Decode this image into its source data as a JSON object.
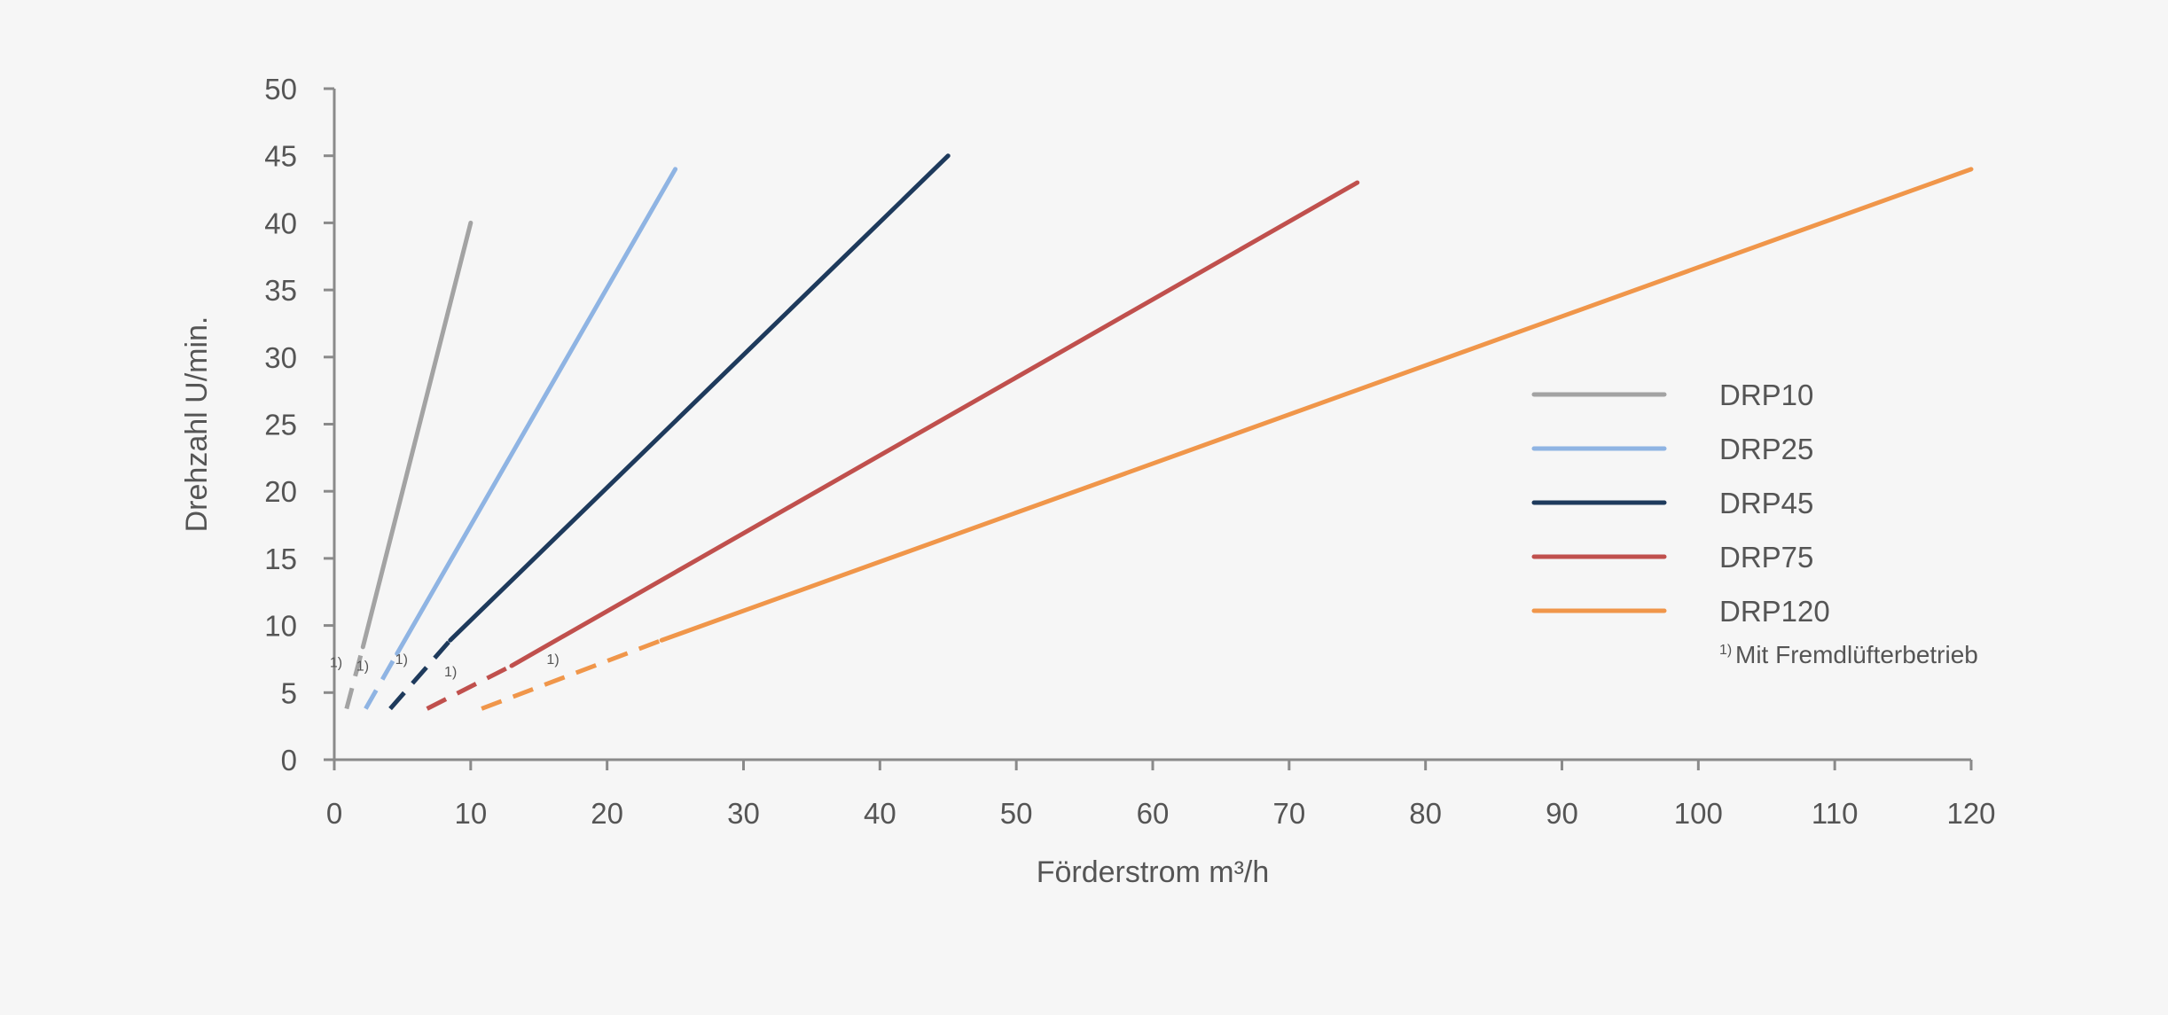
{
  "chart_data": {
    "type": "line",
    "xlabel": "Förderstrom m³/h",
    "ylabel": "Drehzahl U/min.",
    "xlim": [
      0,
      120
    ],
    "ylim": [
      0,
      50
    ],
    "x_ticks": [
      0,
      10,
      20,
      30,
      40,
      50,
      60,
      70,
      80,
      90,
      100,
      110,
      120
    ],
    "y_ticks": [
      0,
      5,
      10,
      15,
      20,
      25,
      30,
      35,
      40,
      45,
      50
    ],
    "grid": false,
    "legend_position": "right",
    "series": [
      {
        "name": "DRP10",
        "color": "#a3a3a3",
        "dashed_segment": {
          "x": [
            0.9,
            2.1
          ],
          "y": [
            3.8,
            8.4
          ]
        },
        "solid_segment": {
          "x": [
            2.1,
            10.0
          ],
          "y": [
            8.4,
            40.0
          ]
        },
        "footnote_marker": "1)"
      },
      {
        "name": "DRP25",
        "color": "#8fb4e3",
        "dashed_segment": {
          "x": [
            2.3,
            4.6
          ],
          "y": [
            3.8,
            7.9
          ]
        },
        "solid_segment": {
          "x": [
            4.6,
            25.0
          ],
          "y": [
            7.9,
            44.0
          ]
        },
        "footnote_marker": "1)"
      },
      {
        "name": "DRP45",
        "color": "#1e3a5c",
        "dashed_segment": {
          "x": [
            4.1,
            8.5
          ],
          "y": [
            3.8,
            8.9
          ]
        },
        "solid_segment": {
          "x": [
            8.5,
            45.0
          ],
          "y": [
            8.9,
            45.0
          ]
        },
        "footnote_marker": "1)"
      },
      {
        "name": "DRP75",
        "color": "#c0504d",
        "dashed_segment": {
          "x": [
            6.8,
            13.0
          ],
          "y": [
            3.8,
            7.0
          ]
        },
        "solid_segment": {
          "x": [
            13.0,
            75.0
          ],
          "y": [
            7.0,
            43.0
          ]
        },
        "footnote_marker": "1)"
      },
      {
        "name": "DRP120",
        "color": "#f0964a",
        "dashed_segment": {
          "x": [
            10.8,
            24.0
          ],
          "y": [
            3.8,
            8.9
          ]
        },
        "solid_segment": {
          "x": [
            24.0,
            120.0
          ],
          "y": [
            8.9,
            44.0
          ]
        },
        "footnote_marker": "1)"
      }
    ],
    "annotation": {
      "marker": "1)",
      "text": "Mit Fremdlüfterbetrieb"
    }
  }
}
